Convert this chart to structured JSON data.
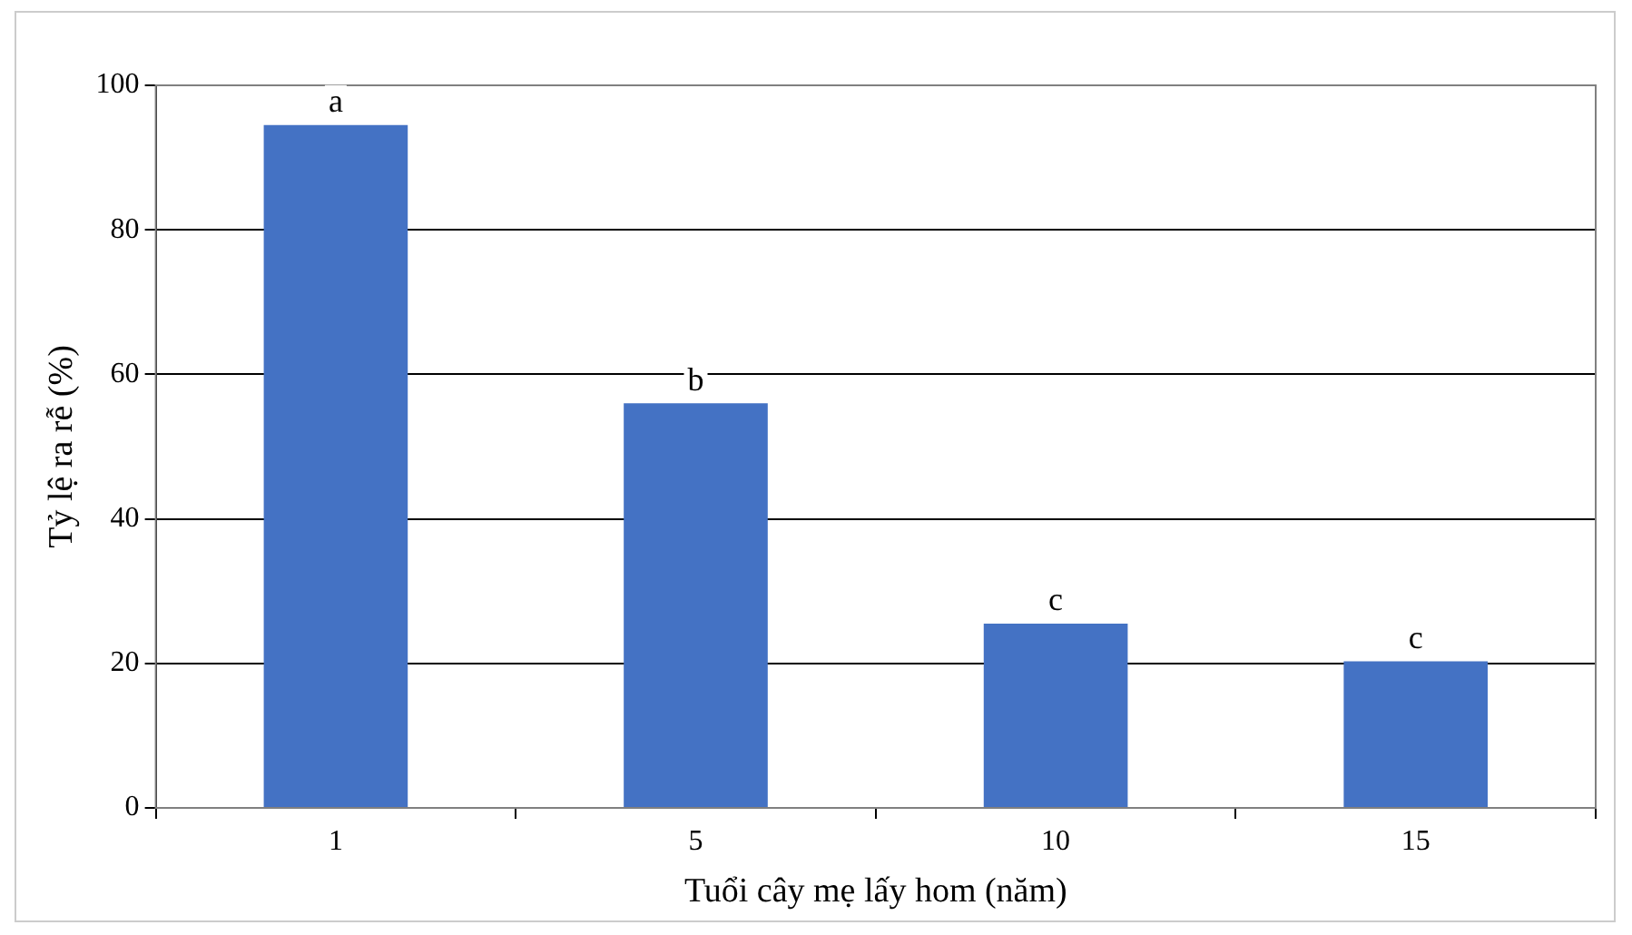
{
  "chart_data": {
    "type": "bar",
    "xlabel": "Tuổi cây mẹ lấy hom (năm)",
    "ylabel": "Tỷ lệ ra rễ (%)",
    "categories": [
      "1",
      "5",
      "10",
      "15"
    ],
    "values": [
      94.5,
      56,
      25.5,
      20.3
    ],
    "color": "#4472c4",
    "ylim": [
      0,
      100
    ],
    "yticks": [
      0,
      20,
      40,
      60,
      80,
      100
    ],
    "grid": "y",
    "legend": false,
    "annotations": [
      {
        "text": "a",
        "x": "1",
        "y": 94.5
      },
      {
        "text": "b",
        "x": "5",
        "y": 56
      },
      {
        "text": "c",
        "x": "10",
        "y": 25.5
      },
      {
        "text": "c",
        "x": "15",
        "y": 20.3
      }
    ]
  }
}
